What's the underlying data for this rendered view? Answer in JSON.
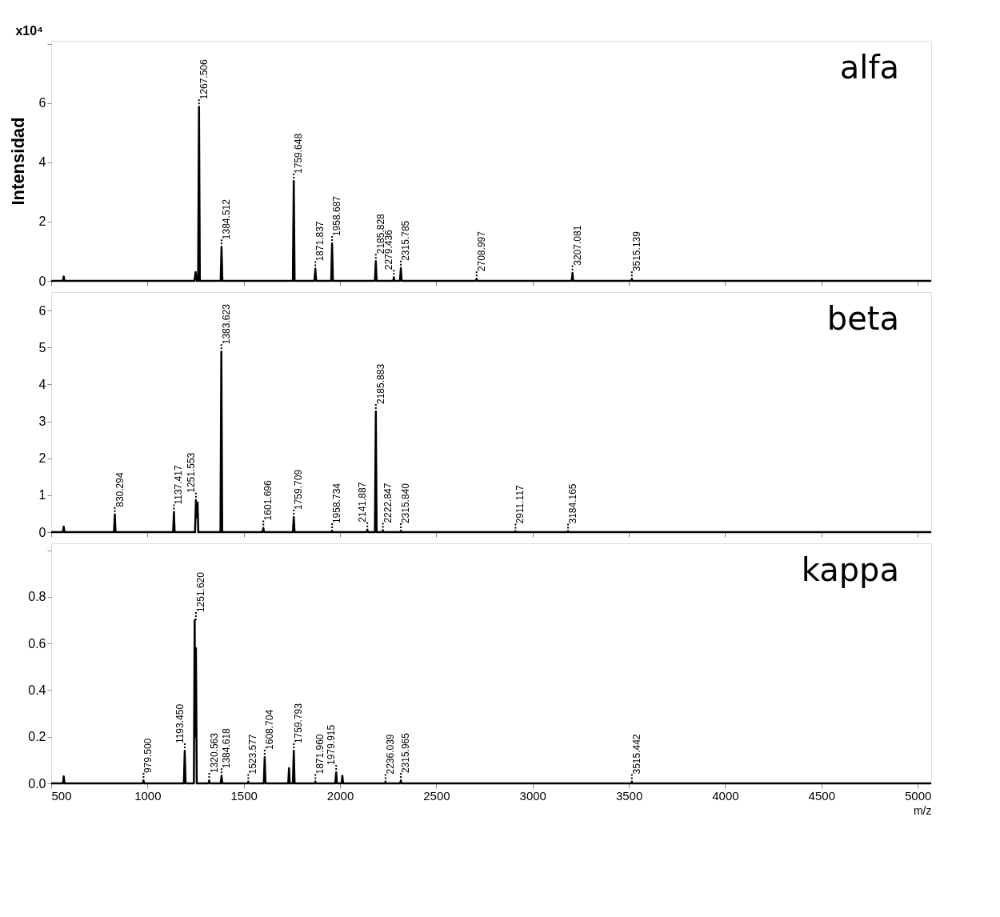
{
  "chart_data": [
    {
      "type": "line",
      "title": "alfa",
      "ylabel": "Intensidad",
      "xlim": [
        500,
        5070
      ],
      "xticks": [
        500,
        1000,
        1500,
        2000,
        2500,
        3000,
        3500,
        4000,
        4500,
        5000
      ],
      "ylim": [
        0,
        8.1
      ],
      "yticks": [
        0,
        2,
        4,
        6,
        {
          "value": 8,
          "label": null
        }
      ],
      "tick_labels": "y",
      "grid": false,
      "series": [
        {
          "color": "#000000",
          "x": [
            500,
            561,
            565,
            569,
            1244,
            1250,
            1256,
            1263,
            1267.506,
            1272,
            1380,
            1384.512,
            1389,
            1755,
            1759.648,
            1764,
            1867,
            1871.837,
            1876,
            1954,
            1958.687,
            1963,
            2181,
            2185.828,
            2190,
            2275,
            2279.436,
            2283,
            2311,
            2315.785,
            2320,
            2704,
            2708.997,
            2713,
            3203,
            3207.081,
            3211,
            3511,
            3515.139,
            3519,
            5070
          ],
          "values": [
            0,
            0,
            0.15,
            0,
            0,
            0.3,
            0,
            0,
            5.85,
            0,
            0,
            1.13,
            0,
            0,
            3.35,
            0,
            0,
            0.39,
            0,
            0,
            1.24,
            0,
            0,
            0.64,
            0,
            0,
            0.1,
            0,
            0,
            0.41,
            0,
            0,
            0.05,
            0,
            0,
            0.25,
            0,
            0,
            0.05,
            0,
            0
          ]
        }
      ],
      "annotations": [
        "x10⁴",
        {
          "text": "1267.506",
          "x": 1267.506,
          "y": 5.85
        },
        {
          "text": "1384.512",
          "x": 1384.512,
          "y": 1.13
        },
        {
          "text": "1759.648",
          "x": 1759.648,
          "y": 3.35
        },
        {
          "text": "1871.837",
          "x": 1871.837,
          "y": 0.39
        },
        {
          "text": "1958.687",
          "x": 1958.687,
          "y": 1.24
        },
        {
          "text": "2185.828",
          "x": 2185.828,
          "y": 0.64
        },
        {
          "text": "2279.436",
          "x": 2279.436,
          "y": 0.1
        },
        {
          "text": "2315.785",
          "x": 2315.785,
          "y": 0.41
        },
        {
          "text": "2708.997",
          "x": 2708.997,
          "y": 0.05
        },
        {
          "text": "3207.081",
          "x": 3207.081,
          "y": 0.25
        },
        {
          "text": "3515.139",
          "x": 3515.139,
          "y": 0.05
        }
      ]
    },
    {
      "type": "line",
      "title": "beta",
      "xlim": [
        500,
        5070
      ],
      "xticks": [
        500,
        1000,
        1500,
        2000,
        2500,
        3000,
        3500,
        4000,
        4500,
        5000
      ],
      "ylim": [
        0,
        6.5
      ],
      "yticks": [
        0,
        1,
        2,
        3,
        4,
        5,
        6
      ],
      "tick_labels": "y",
      "grid": false,
      "series": [
        {
          "color": "#000000",
          "x": [
            500,
            561,
            565,
            569,
            826,
            830.294,
            834,
            1133,
            1137.417,
            1141,
            1247,
            1251.553,
            1256,
            1260,
            1264,
            1379,
            1383.623,
            1388,
            1597,
            1601.696,
            1606,
            1755,
            1759.709,
            1764,
            1954,
            1958.734,
            1963,
            2137,
            2141.887,
            2146,
            2181,
            2185.883,
            2190,
            2218,
            2222.847,
            2227,
            2311,
            2315.84,
            2320,
            2907,
            2911.117,
            2915,
            3180,
            3184.165,
            3188,
            5070
          ],
          "values": [
            0,
            0,
            0.15,
            0,
            0,
            0.46,
            0,
            0,
            0.53,
            0,
            0,
            0.85,
            0.4,
            0.8,
            0,
            0,
            4.87,
            0,
            0,
            0.1,
            0,
            0,
            0.39,
            0,
            0,
            0.02,
            0,
            0,
            0.05,
            0,
            0,
            3.25,
            0,
            0,
            0.03,
            0,
            0,
            0.02,
            0,
            0,
            0.01,
            0,
            0,
            0.01,
            0,
            0
          ]
        }
      ],
      "annotations": [
        {
          "text": "830.294",
          "x": 830.294,
          "y": 0.46
        },
        {
          "text": "1137.417",
          "x": 1137.417,
          "y": 0.53
        },
        {
          "text": "1251.553",
          "x": 1251.553,
          "y": 0.85
        },
        {
          "text": "1383.623",
          "x": 1383.623,
          "y": 4.87
        },
        {
          "text": "1601.696",
          "x": 1601.696,
          "y": 0.1
        },
        {
          "text": "1759.709",
          "x": 1759.709,
          "y": 0.39
        },
        {
          "text": "1958.734",
          "x": 1958.734,
          "y": 0.02
        },
        {
          "text": "2141.887",
          "x": 2141.887,
          "y": 0.05
        },
        {
          "text": "2185.883",
          "x": 2185.883,
          "y": 3.25
        },
        {
          "text": "2222.847",
          "x": 2222.847,
          "y": 0.03
        },
        {
          "text": "2315.840",
          "x": 2315.84,
          "y": 0.02
        },
        {
          "text": "2911.117",
          "x": 2911.117,
          "y": 0.01
        },
        {
          "text": "3184.165",
          "x": 3184.165,
          "y": 0.01
        }
      ]
    },
    {
      "type": "line",
      "title": "kappa",
      "xlabel": "m/z",
      "xlim": [
        500,
        5070
      ],
      "xticks": [
        500,
        1000,
        1500,
        2000,
        2500,
        3000,
        3500,
        4000,
        4500,
        5000
      ],
      "ylim": [
        0,
        1.03
      ],
      "yticks": [
        {
          "value": 0,
          "label": "0.0"
        },
        0.2,
        0.4,
        0.6,
        0.8,
        {
          "value": 1,
          "label": null
        }
      ],
      "grid": false,
      "series": [
        {
          "color": "#000000",
          "x": [
            500,
            561,
            565,
            569,
            975,
            979.5,
            984,
            1189,
            1193.45,
            1198,
            1241,
            1245,
            1248,
            1251.62,
            1256,
            1316,
            1320.563,
            1325,
            1380,
            1384.618,
            1389,
            1519,
            1523.577,
            1528,
            1604,
            1608.704,
            1613,
            1731,
            1735,
            1739,
            1755,
            1759.793,
            1764,
            1867,
            1871.96,
            1876,
            1975,
            1979.915,
            1984,
            2008,
            2012,
            2016,
            2232,
            2236.039,
            2240,
            2311,
            2315.965,
            2320,
            3511,
            3515.442,
            3519,
            5070
          ],
          "values": [
            0,
            0,
            0.03,
            0,
            0,
            0.01,
            0,
            0,
            0.137,
            0,
            0,
            0.7,
            0.2,
            0.58,
            0,
            0,
            0.01,
            0,
            0,
            0.03,
            0,
            0,
            0.005,
            0,
            0,
            0.11,
            0,
            0,
            0.065,
            0,
            0,
            0.137,
            0,
            0,
            0.005,
            0,
            0,
            0.045,
            0,
            0,
            0.033,
            0,
            0,
            0.005,
            0,
            0,
            0.01,
            0,
            0,
            0.005,
            0,
            0
          ]
        }
      ],
      "annotations": [
        {
          "text": "979.500",
          "x": 979.5,
          "y": 0.01
        },
        {
          "text": "1193.450",
          "x": 1193.45,
          "y": 0.137
        },
        {
          "text": "1251.620",
          "x": 1251.62,
          "y": 0.7
        },
        {
          "text": "1320.563",
          "x": 1320.563,
          "y": 0.01
        },
        {
          "text": "1384.618",
          "x": 1384.618,
          "y": 0.03
        },
        {
          "text": "1523.577",
          "x": 1523.577,
          "y": 0.005
        },
        {
          "text": "1608.704",
          "x": 1608.704,
          "y": 0.11
        },
        {
          "text": "1759.793",
          "x": 1759.793,
          "y": 0.137
        },
        {
          "text": "1871.960",
          "x": 1871.96,
          "y": 0.005
        },
        {
          "text": "1979.915",
          "x": 1979.915,
          "y": 0.045
        },
        {
          "text": "2236.039",
          "x": 2236.039,
          "y": 0.005
        },
        {
          "text": "2315.965",
          "x": 2315.965,
          "y": 0.01
        },
        {
          "text": "3515.442",
          "x": 3515.442,
          "y": 0.005
        }
      ]
    }
  ]
}
